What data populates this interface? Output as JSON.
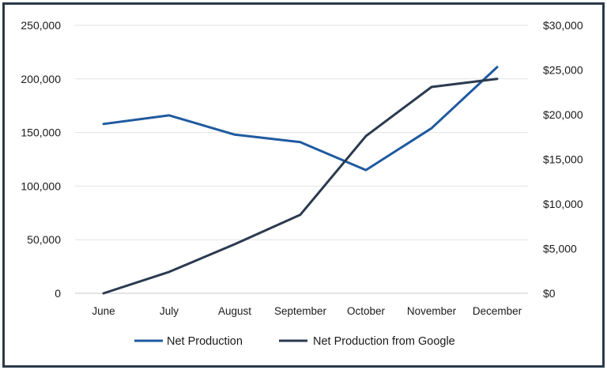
{
  "chart_data": {
    "type": "line",
    "categories": [
      "June",
      "July",
      "August",
      "September",
      "October",
      "November",
      "December"
    ],
    "y_left": {
      "ticks": [
        "0",
        "50,000",
        "100,000",
        "150,000",
        "200,000",
        "250,000"
      ],
      "ylim": [
        0,
        250000
      ]
    },
    "y_right": {
      "ticks": [
        "$0",
        "$5,000",
        "$10,000",
        "$15,000",
        "$20,000",
        "$25,000",
        "$30,000"
      ],
      "ylim": [
        0,
        30000
      ]
    },
    "grid": true,
    "legend_position": "bottom",
    "series": [
      {
        "name": "Net Production",
        "axis": "left",
        "color": "#1f5aa0",
        "values": [
          158000,
          166000,
          148000,
          141000,
          115000,
          154000,
          211000
        ]
      },
      {
        "name": "Net Production from Google",
        "axis": "right",
        "color": "#2b3a4f",
        "values": [
          0,
          2400,
          5500,
          8800,
          17600,
          23100,
          24000
        ]
      }
    ]
  }
}
